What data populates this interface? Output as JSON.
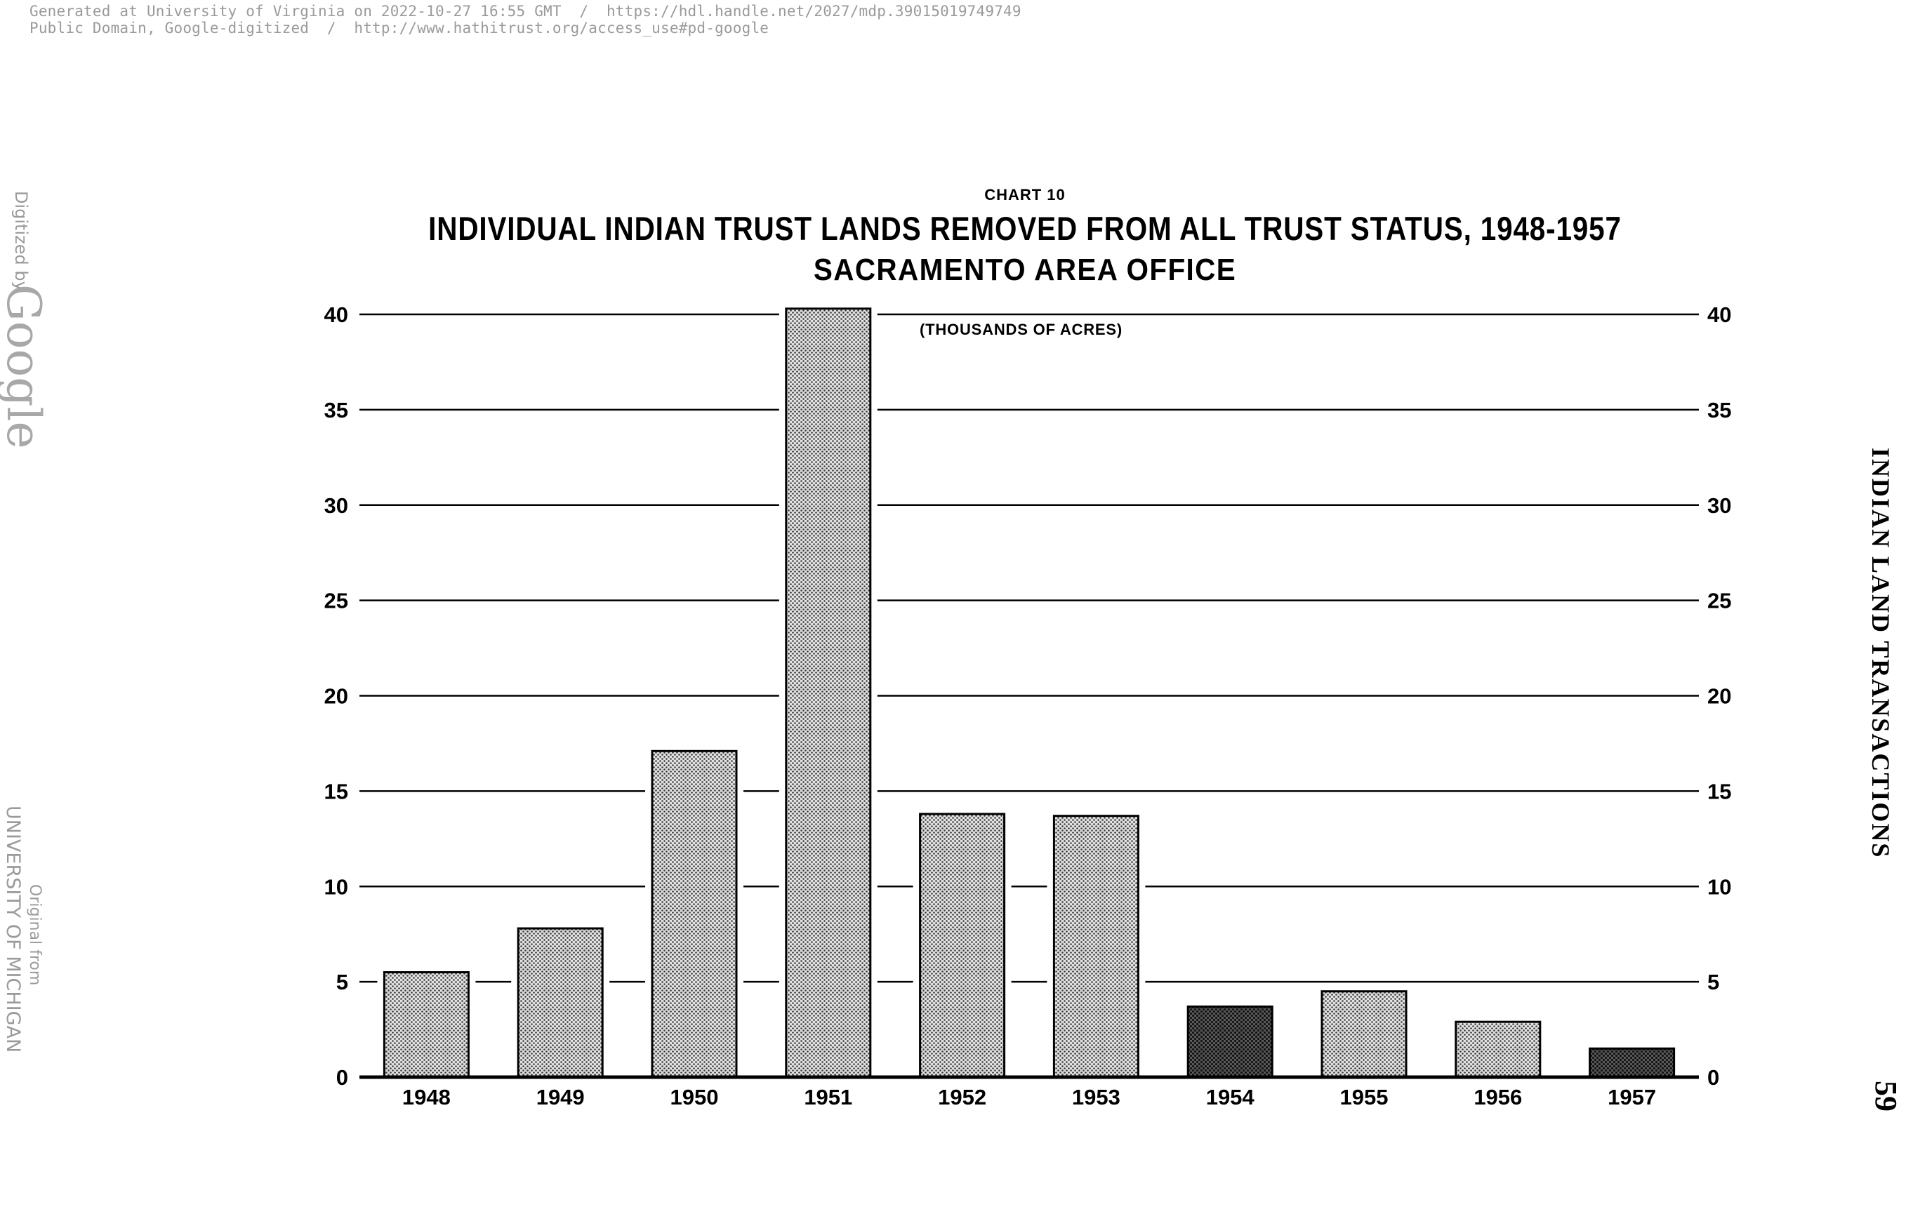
{
  "header": {
    "line1": "Generated at University of Virginia on 2022-10-27 16:55 GMT  /  https://hdl.handle.net/2027/mdp.39015019749749",
    "line2": "Public Domain, Google-digitized  /  http://www.hathitrust.org/access_use#pd-google"
  },
  "watermark": {
    "digitized_by": "Digitized by",
    "google": "Google",
    "original_from": "Original from",
    "university": "UNIVERSITY OF MICHIGAN"
  },
  "page": {
    "running_head": "INDIAN LAND TRANSACTIONS",
    "page_number": "59"
  },
  "chart_label": "CHART 10",
  "colors": {
    "ink": "#000000",
    "bar_fill": "#c8c8c8",
    "bar_fill_dark": "#6a6a6a",
    "meta_text": "#9a9a9a"
  },
  "chart_data": {
    "type": "bar",
    "title": "INDIVIDUAL INDIAN TRUST LANDS REMOVED FROM ALL TRUST STATUS, 1948-1957",
    "subtitle": "SACRAMENTO AREA OFFICE",
    "ylabel": "(THOUSANDS OF ACRES)",
    "xlabel": "",
    "categories": [
      "1948",
      "1949",
      "1950",
      "1951",
      "1952",
      "1953",
      "1954",
      "1955",
      "1956",
      "1957"
    ],
    "values": [
      5.5,
      7.8,
      17.1,
      40.3,
      13.8,
      13.7,
      3.7,
      4.5,
      2.9,
      1.5
    ],
    "ylim": [
      0,
      40
    ],
    "yticks": [
      0,
      5,
      10,
      15,
      20,
      25,
      30,
      35,
      40
    ],
    "ytick_labels": [
      "0",
      "5",
      "10",
      "15",
      "20",
      "25",
      "30",
      "35",
      "40"
    ],
    "dark_bars": [
      "1954",
      "1957"
    ],
    "grid": true,
    "right_axis_labels": true
  }
}
